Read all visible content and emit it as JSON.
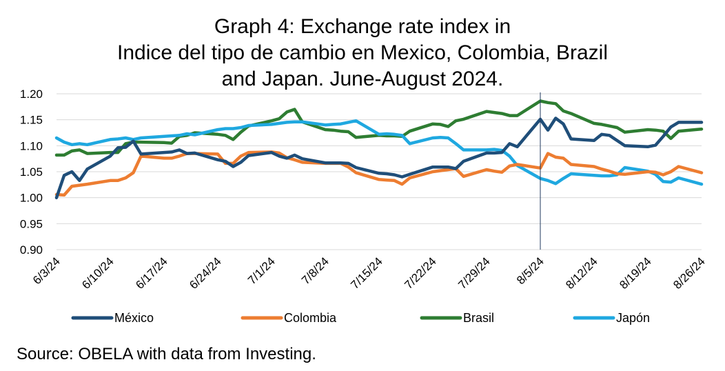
{
  "chart_data": {
    "type": "line",
    "title_lines": [
      "Graph 4: Exchange rate index in",
      "Indice del tipo de cambio en Mexico, Colombia, Brazil",
      "and Japan. June-August 2024."
    ],
    "xlabel": "",
    "ylabel": "",
    "ylim": [
      0.9,
      1.2
    ],
    "yticks": [
      "1.20",
      "1.15",
      "1.10",
      "1.05",
      "1.00",
      "0.95",
      "0.90"
    ],
    "x_tick_labels": [
      "6/3/24",
      "6/10/24",
      "6/17/24",
      "6/24/24",
      "7/1/24",
      "7/8/24",
      "7/15/24",
      "7/22/24",
      "7/29/24",
      "8/5/24",
      "8/12/24",
      "8/19/24",
      "8/26/24"
    ],
    "grid": "horizontal",
    "legend_position": "bottom",
    "marker_line_date": "8/5/24",
    "series": [
      {
        "name": "México",
        "color": "#1f4e79",
        "points": [
          [
            "6/3/24",
            1.0
          ],
          [
            "6/4/24",
            1.043
          ],
          [
            "6/5/24",
            1.05
          ],
          [
            "6/6/24",
            1.033
          ],
          [
            "6/7/24",
            1.055
          ],
          [
            "6/10/24",
            1.08
          ],
          [
            "6/11/24",
            1.096
          ],
          [
            "6/12/24",
            1.097
          ],
          [
            "6/13/24",
            1.109
          ],
          [
            "6/14/24",
            1.084
          ],
          [
            "6/17/24",
            1.087
          ],
          [
            "6/18/24",
            1.088
          ],
          [
            "6/19/24",
            1.092
          ],
          [
            "6/20/24",
            1.085
          ],
          [
            "6/21/24",
            1.086
          ],
          [
            "6/24/24",
            1.073
          ],
          [
            "6/25/24",
            1.07
          ],
          [
            "6/26/24",
            1.06
          ],
          [
            "6/27/24",
            1.068
          ],
          [
            "6/28/24",
            1.081
          ],
          [
            "7/1/24",
            1.087
          ],
          [
            "7/2/24",
            1.08
          ],
          [
            "7/3/24",
            1.076
          ],
          [
            "7/4/24",
            1.082
          ],
          [
            "7/5/24",
            1.075
          ],
          [
            "7/8/24",
            1.067
          ],
          [
            "7/9/24",
            1.067
          ],
          [
            "7/10/24",
            1.067
          ],
          [
            "7/11/24",
            1.066
          ],
          [
            "7/12/24",
            1.058
          ],
          [
            "7/15/24",
            1.047
          ],
          [
            "7/16/24",
            1.046
          ],
          [
            "7/17/24",
            1.044
          ],
          [
            "7/18/24",
            1.04
          ],
          [
            "7/19/24",
            1.045
          ],
          [
            "7/22/24",
            1.059
          ],
          [
            "7/23/24",
            1.059
          ],
          [
            "7/24/24",
            1.059
          ],
          [
            "7/25/24",
            1.056
          ],
          [
            "7/26/24",
            1.07
          ],
          [
            "7/29/24",
            1.086
          ],
          [
            "7/30/24",
            1.086
          ],
          [
            "7/31/24",
            1.087
          ],
          [
            "8/1/24",
            1.104
          ],
          [
            "8/2/24",
            1.098
          ],
          [
            "8/5/24",
            1.151
          ],
          [
            "8/6/24",
            1.13
          ],
          [
            "8/7/24",
            1.153
          ],
          [
            "8/8/24",
            1.142
          ],
          [
            "8/9/24",
            1.113
          ],
          [
            "8/12/24",
            1.11
          ],
          [
            "8/13/24",
            1.122
          ],
          [
            "8/14/24",
            1.12
          ],
          [
            "8/15/24",
            1.11
          ],
          [
            "8/16/24",
            1.1
          ],
          [
            "8/19/24",
            1.098
          ],
          [
            "8/20/24",
            1.101
          ],
          [
            "8/21/24",
            1.118
          ],
          [
            "8/22/24",
            1.136
          ],
          [
            "8/23/24",
            1.145
          ],
          [
            "8/26/24",
            1.145
          ]
        ]
      },
      {
        "name": "Colombia",
        "color": "#ed7d31",
        "points": [
          [
            "6/3/24",
            1.006
          ],
          [
            "6/4/24",
            1.005
          ],
          [
            "6/5/24",
            1.022
          ],
          [
            "6/6/24",
            1.024
          ],
          [
            "6/7/24",
            1.026
          ],
          [
            "6/10/24",
            1.033
          ],
          [
            "6/11/24",
            1.033
          ],
          [
            "6/12/24",
            1.038
          ],
          [
            "6/13/24",
            1.048
          ],
          [
            "6/14/24",
            1.08
          ],
          [
            "6/17/24",
            1.076
          ],
          [
            "6/18/24",
            1.076
          ],
          [
            "6/19/24",
            1.08
          ],
          [
            "6/20/24",
            1.085
          ],
          [
            "6/21/24",
            1.085
          ],
          [
            "6/24/24",
            1.084
          ],
          [
            "6/25/24",
            1.066
          ],
          [
            "6/26/24",
            1.066
          ],
          [
            "6/27/24",
            1.08
          ],
          [
            "6/28/24",
            1.087
          ],
          [
            "7/1/24",
            1.088
          ],
          [
            "7/2/24",
            1.086
          ],
          [
            "7/3/24",
            1.077
          ],
          [
            "7/4/24",
            1.073
          ],
          [
            "7/5/24",
            1.068
          ],
          [
            "7/8/24",
            1.066
          ],
          [
            "7/9/24",
            1.066
          ],
          [
            "7/10/24",
            1.066
          ],
          [
            "7/11/24",
            1.059
          ],
          [
            "7/12/24",
            1.048
          ],
          [
            "7/15/24",
            1.035
          ],
          [
            "7/16/24",
            1.034
          ],
          [
            "7/17/24",
            1.033
          ],
          [
            "7/18/24",
            1.026
          ],
          [
            "7/19/24",
            1.038
          ],
          [
            "7/22/24",
            1.05
          ],
          [
            "7/23/24",
            1.052
          ],
          [
            "7/24/24",
            1.054
          ],
          [
            "7/25/24",
            1.056
          ],
          [
            "7/26/24",
            1.041
          ],
          [
            "7/29/24",
            1.054
          ],
          [
            "7/30/24",
            1.051
          ],
          [
            "7/31/24",
            1.049
          ],
          [
            "8/1/24",
            1.061
          ],
          [
            "8/2/24",
            1.064
          ],
          [
            "8/5/24",
            1.057
          ],
          [
            "8/6/24",
            1.085
          ],
          [
            "8/7/24",
            1.078
          ],
          [
            "8/8/24",
            1.076
          ],
          [
            "8/9/24",
            1.064
          ],
          [
            "8/12/24",
            1.06
          ],
          [
            "8/13/24",
            1.055
          ],
          [
            "8/14/24",
            1.051
          ],
          [
            "8/15/24",
            1.046
          ],
          [
            "8/16/24",
            1.045
          ],
          [
            "8/19/24",
            1.05
          ],
          [
            "8/20/24",
            1.049
          ],
          [
            "8/21/24",
            1.044
          ],
          [
            "8/22/24",
            1.05
          ],
          [
            "8/23/24",
            1.06
          ],
          [
            "8/26/24",
            1.048
          ]
        ]
      },
      {
        "name": "Brasil",
        "color": "#2e7d32",
        "points": [
          [
            "6/3/24",
            1.082
          ],
          [
            "6/4/24",
            1.082
          ],
          [
            "6/5/24",
            1.09
          ],
          [
            "6/6/24",
            1.092
          ],
          [
            "6/7/24",
            1.085
          ],
          [
            "6/10/24",
            1.087
          ],
          [
            "6/11/24",
            1.087
          ],
          [
            "6/12/24",
            1.104
          ],
          [
            "6/13/24",
            1.107
          ],
          [
            "6/14/24",
            1.107
          ],
          [
            "6/17/24",
            1.106
          ],
          [
            "6/18/24",
            1.105
          ],
          [
            "6/19/24",
            1.118
          ],
          [
            "6/20/24",
            1.12
          ],
          [
            "6/21/24",
            1.125
          ],
          [
            "6/24/24",
            1.122
          ],
          [
            "6/25/24",
            1.12
          ],
          [
            "6/26/24",
            1.112
          ],
          [
            "6/27/24",
            1.126
          ],
          [
            "6/28/24",
            1.138
          ],
          [
            "7/1/24",
            1.148
          ],
          [
            "7/2/24",
            1.152
          ],
          [
            "7/3/24",
            1.165
          ],
          [
            "7/4/24",
            1.17
          ],
          [
            "7/5/24",
            1.146
          ],
          [
            "7/8/24",
            1.131
          ],
          [
            "7/9/24",
            1.13
          ],
          [
            "7/10/24",
            1.128
          ],
          [
            "7/11/24",
            1.127
          ],
          [
            "7/12/24",
            1.116
          ],
          [
            "7/15/24",
            1.12
          ],
          [
            "7/16/24",
            1.119
          ],
          [
            "7/17/24",
            1.119
          ],
          [
            "7/18/24",
            1.118
          ],
          [
            "7/19/24",
            1.128
          ],
          [
            "7/22/24",
            1.142
          ],
          [
            "7/23/24",
            1.141
          ],
          [
            "7/24/24",
            1.137
          ],
          [
            "7/25/24",
            1.148
          ],
          [
            "7/26/24",
            1.151
          ],
          [
            "7/29/24",
            1.166
          ],
          [
            "7/30/24",
            1.164
          ],
          [
            "7/31/24",
            1.162
          ],
          [
            "8/1/24",
            1.158
          ],
          [
            "8/2/24",
            1.158
          ],
          [
            "8/5/24",
            1.186
          ],
          [
            "8/6/24",
            1.183
          ],
          [
            "8/7/24",
            1.181
          ],
          [
            "8/8/24",
            1.167
          ],
          [
            "8/9/24",
            1.162
          ],
          [
            "8/12/24",
            1.143
          ],
          [
            "8/13/24",
            1.141
          ],
          [
            "8/14/24",
            1.138
          ],
          [
            "8/15/24",
            1.135
          ],
          [
            "8/16/24",
            1.126
          ],
          [
            "8/19/24",
            1.131
          ],
          [
            "8/20/24",
            1.13
          ],
          [
            "8/21/24",
            1.128
          ],
          [
            "8/22/24",
            1.114
          ],
          [
            "8/23/24",
            1.128
          ],
          [
            "8/26/24",
            1.132
          ]
        ]
      },
      {
        "name": "Japón",
        "color": "#1fa8e0",
        "points": [
          [
            "6/3/24",
            1.115
          ],
          [
            "6/4/24",
            1.107
          ],
          [
            "6/5/24",
            1.102
          ],
          [
            "6/6/24",
            1.104
          ],
          [
            "6/7/24",
            1.102
          ],
          [
            "6/10/24",
            1.112
          ],
          [
            "6/11/24",
            1.113
          ],
          [
            "6/12/24",
            1.115
          ],
          [
            "6/13/24",
            1.112
          ],
          [
            "6/14/24",
            1.115
          ],
          [
            "6/17/24",
            1.118
          ],
          [
            "6/18/24",
            1.119
          ],
          [
            "6/19/24",
            1.12
          ],
          [
            "6/20/24",
            1.123
          ],
          [
            "6/21/24",
            1.121
          ],
          [
            "6/24/24",
            1.131
          ],
          [
            "6/25/24",
            1.133
          ],
          [
            "6/26/24",
            1.133
          ],
          [
            "6/27/24",
            1.135
          ],
          [
            "6/28/24",
            1.139
          ],
          [
            "7/1/24",
            1.141
          ],
          [
            "7/2/24",
            1.143
          ],
          [
            "7/3/24",
            1.145
          ],
          [
            "7/4/24",
            1.146
          ],
          [
            "7/5/24",
            1.146
          ],
          [
            "7/8/24",
            1.14
          ],
          [
            "7/9/24",
            1.141
          ],
          [
            "7/10/24",
            1.142
          ],
          [
            "7/11/24",
            1.145
          ],
          [
            "7/12/24",
            1.148
          ],
          [
            "7/15/24",
            1.122
          ],
          [
            "7/16/24",
            1.123
          ],
          [
            "7/17/24",
            1.122
          ],
          [
            "7/18/24",
            1.12
          ],
          [
            "7/19/24",
            1.104
          ],
          [
            "7/22/24",
            1.115
          ],
          [
            "7/23/24",
            1.116
          ],
          [
            "7/24/24",
            1.115
          ],
          [
            "7/25/24",
            1.104
          ],
          [
            "7/26/24",
            1.092
          ],
          [
            "7/29/24",
            1.092
          ],
          [
            "7/30/24",
            1.093
          ],
          [
            "7/31/24",
            1.091
          ],
          [
            "8/1/24",
            1.08
          ],
          [
            "8/2/24",
            1.062
          ],
          [
            "8/5/24",
            1.037
          ],
          [
            "8/6/24",
            1.033
          ],
          [
            "8/7/24",
            1.027
          ],
          [
            "8/8/24",
            1.037
          ],
          [
            "8/9/24",
            1.046
          ],
          [
            "8/12/24",
            1.043
          ],
          [
            "8/13/24",
            1.042
          ],
          [
            "8/14/24",
            1.042
          ],
          [
            "8/15/24",
            1.044
          ],
          [
            "8/16/24",
            1.058
          ],
          [
            "8/19/24",
            1.051
          ],
          [
            "8/20/24",
            1.045
          ],
          [
            "8/21/24",
            1.031
          ],
          [
            "8/22/24",
            1.03
          ],
          [
            "8/23/24",
            1.038
          ],
          [
            "8/26/24",
            1.026
          ]
        ]
      }
    ]
  },
  "source": "Source: OBELA with data from Investing."
}
